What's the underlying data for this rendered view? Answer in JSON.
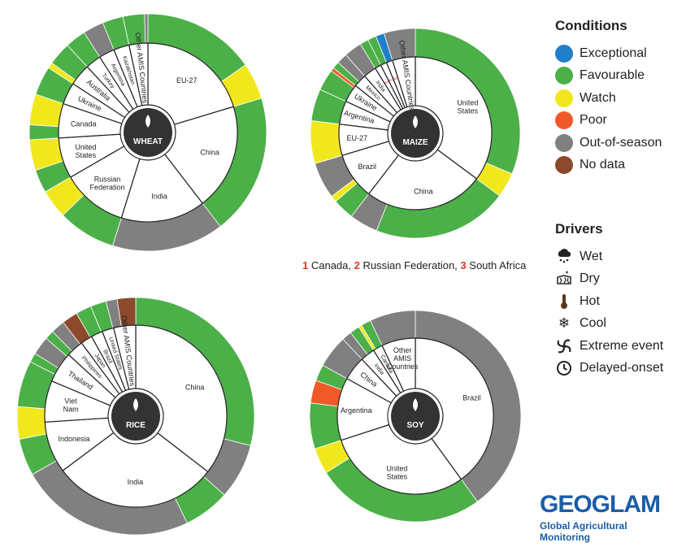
{
  "legend": {
    "conditions_title": "Conditions",
    "conditions": [
      {
        "label": "Exceptional",
        "color": "#1f7fc9"
      },
      {
        "label": "Favourable",
        "color": "#4cb048"
      },
      {
        "label": "Watch",
        "color": "#f0e81d"
      },
      {
        "label": "Poor",
        "color": "#ef5a28"
      },
      {
        "label": "Out-of-season",
        "color": "#808080"
      },
      {
        "label": "No data",
        "color": "#8b4a2b"
      }
    ],
    "drivers_title": "Drivers",
    "drivers": [
      {
        "label": "Wet",
        "icon": "wet-icon"
      },
      {
        "label": "Dry",
        "icon": "dry-icon"
      },
      {
        "label": "Hot",
        "icon": "hot-icon"
      },
      {
        "label": "Cool",
        "icon": "cool-icon"
      },
      {
        "label": "Extreme event",
        "icon": "extreme-event-icon"
      },
      {
        "label": "Delayed-onset",
        "icon": "delayed-onset-icon"
      }
    ]
  },
  "footnote": {
    "parts": [
      {
        "num": "1",
        "text": " Canada, "
      },
      {
        "num": "2",
        "text": " Russian Federation, "
      },
      {
        "num": "3",
        "text": " South Africa"
      }
    ]
  },
  "logo": {
    "word": "GEOGLAM",
    "sub": "Global Agricultural Monitoring"
  },
  "chart_data": [
    {
      "type": "nested-donut",
      "title": "WHEAT",
      "inner": [
        {
          "label": "EU-27",
          "value": 18.0
        },
        {
          "label": "China",
          "value": 17.0
        },
        {
          "label": "India",
          "value": 13.5
        },
        {
          "label": "Russian Federation",
          "value": 10.5
        },
        {
          "label": "United States",
          "value": 6.5
        },
        {
          "label": "Canada",
          "value": 5.5
        },
        {
          "label": "Ukraine",
          "value": 3.5
        },
        {
          "label": "Australia",
          "value": 3.5
        },
        {
          "label": "Turkey",
          "value": 2.5
        },
        {
          "label": "Argentina",
          "value": 2.5
        },
        {
          "label": "Kazakhstan",
          "value": 2.5
        },
        {
          "label": "Other AMIS Countries",
          "value": 3.0
        }
      ],
      "outer": [
        {
          "cond": "Favourable",
          "value": 13.6
        },
        {
          "cond": "Watch",
          "value": 4.4
        },
        {
          "cond": "Favourable",
          "value": 17.0
        },
        {
          "cond": "Out-of-season",
          "value": 13.5
        },
        {
          "cond": "Favourable",
          "value": 7.0
        },
        {
          "cond": "Watch",
          "value": 3.5
        },
        {
          "cond": "Favourable",
          "value": 2.8
        },
        {
          "cond": "Watch",
          "value": 3.7
        },
        {
          "cond": "Favourable",
          "value": 1.8
        },
        {
          "cond": "Watch",
          "value": 3.7
        },
        {
          "cond": "Favourable",
          "value": 3.5
        },
        {
          "cond": "Watch",
          "value": 0.7
        },
        {
          "cond": "Favourable",
          "value": 2.8
        },
        {
          "cond": "Favourable",
          "value": 2.5
        },
        {
          "cond": "Out-of-season",
          "value": 2.5
        },
        {
          "cond": "Favourable",
          "value": 2.5
        },
        {
          "cond": "Favourable",
          "value": 2.6
        },
        {
          "cond": "Out-of-season",
          "value": 0.4
        }
      ]
    },
    {
      "type": "nested-donut",
      "title": "MAIZE",
      "inner": [
        {
          "label": "United States",
          "value": 32.0
        },
        {
          "label": "China",
          "value": 23.0
        },
        {
          "label": "Brazil",
          "value": 9.0
        },
        {
          "label": "EU-27",
          "value": 6.0
        },
        {
          "label": "Argentina",
          "value": 4.5
        },
        {
          "label": "Ukraine",
          "value": 3.5
        },
        {
          "label": "Mexico",
          "value": 2.5
        },
        {
          "label": "India",
          "value": 2.5
        },
        {
          "label": "1",
          "value": 1.2
        },
        {
          "label": "2",
          "value": 1.2
        },
        {
          "label": "3",
          "value": 1.2
        },
        {
          "label": "Other AMIS Countries",
          "value": 4.4
        }
      ],
      "outer": [
        {
          "cond": "Favourable",
          "value": 28.5
        },
        {
          "cond": "Watch",
          "value": 3.5
        },
        {
          "cond": "Favourable",
          "value": 19.0
        },
        {
          "cond": "Out-of-season",
          "value": 4.0
        },
        {
          "cond": "Favourable",
          "value": 3.0
        },
        {
          "cond": "Watch",
          "value": 0.9
        },
        {
          "cond": "Out-of-season",
          "value": 5.1
        },
        {
          "cond": "Watch",
          "value": 6.0
        },
        {
          "cond": "Favourable",
          "value": 4.5
        },
        {
          "cond": "Favourable",
          "value": 3.0
        },
        {
          "cond": "Poor",
          "value": 0.5
        },
        {
          "cond": "Favourable",
          "value": 1.0
        },
        {
          "cond": "Out-of-season",
          "value": 1.5
        },
        {
          "cond": "Out-of-season",
          "value": 2.5
        },
        {
          "cond": "Favourable",
          "value": 1.2
        },
        {
          "cond": "Favourable",
          "value": 1.2
        },
        {
          "cond": "Exceptional",
          "value": 1.2
        },
        {
          "cond": "Out-of-season",
          "value": 4.4
        }
      ]
    },
    {
      "type": "nested-donut",
      "title": "RICE",
      "inner": [
        {
          "label": "China",
          "value": 29.0
        },
        {
          "label": "India",
          "value": 24.0
        },
        {
          "label": "Indonesia",
          "value": 7.5
        },
        {
          "label": "Viet Nam",
          "value": 6.0
        },
        {
          "label": "Thailand",
          "value": 4.5
        },
        {
          "label": "Philippines",
          "value": 2.5
        },
        {
          "label": "Japan",
          "value": 1.7
        },
        {
          "label": "Brazil",
          "value": 1.7
        },
        {
          "label": "United States",
          "value": 1.7
        },
        {
          "label": "Other AMIS Countries",
          "value": 3.2
        }
      ],
      "outer": [
        {
          "cond": "Favourable",
          "value": 23.0
        },
        {
          "cond": "Out-of-season",
          "value": 6.0
        },
        {
          "cond": "Favourable",
          "value": 5.0
        },
        {
          "cond": "Out-of-season",
          "value": 19.0
        },
        {
          "cond": "Favourable",
          "value": 4.0
        },
        {
          "cond": "Watch",
          "value": 3.5
        },
        {
          "cond": "Favourable",
          "value": 5.0
        },
        {
          "cond": "Favourable",
          "value": 1.0
        },
        {
          "cond": "Out-of-season",
          "value": 2.0
        },
        {
          "cond": "Favourable",
          "value": 1.0
        },
        {
          "cond": "Out-of-season",
          "value": 1.5
        },
        {
          "cond": "No data",
          "value": 1.7
        },
        {
          "cond": "Favourable",
          "value": 1.7
        },
        {
          "cond": "Favourable",
          "value": 1.7
        },
        {
          "cond": "Out-of-season",
          "value": 1.2
        },
        {
          "cond": "No data",
          "value": 2.0
        }
      ]
    },
    {
      "type": "nested-donut",
      "title": "SOY",
      "inner": [
        {
          "label": "Brazil",
          "value": 40.0
        },
        {
          "label": "United States",
          "value": 30.0
        },
        {
          "label": "Argentina",
          "value": 13.0
        },
        {
          "label": "China",
          "value": 5.0
        },
        {
          "label": "India",
          "value": 3.0
        },
        {
          "label": "Canada",
          "value": 2.0
        },
        {
          "label": "Other AMIS Countries",
          "value": 7.0
        }
      ],
      "outer": [
        {
          "cond": "Out-of-season",
          "value": 40.0
        },
        {
          "cond": "Favourable",
          "value": 26.0
        },
        {
          "cond": "Watch",
          "value": 4.0
        },
        {
          "cond": "Favourable",
          "value": 7.0
        },
        {
          "cond": "Poor",
          "value": 3.5
        },
        {
          "cond": "Favourable",
          "value": 2.5
        },
        {
          "cond": "Out-of-season",
          "value": 5.0
        },
        {
          "cond": "Out-of-season",
          "value": 1.5
        },
        {
          "cond": "Favourable",
          "value": 1.5
        },
        {
          "cond": "Watch",
          "value": 0.5
        },
        {
          "cond": "Favourable",
          "value": 1.5
        },
        {
          "cond": "Out-of-season",
          "value": 7.0
        }
      ]
    }
  ]
}
